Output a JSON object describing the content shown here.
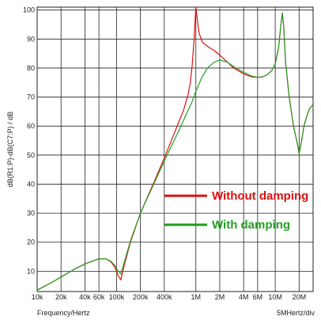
{
  "chart_data": {
    "type": "line",
    "title": "",
    "xlabel": "Frequency/Hertz",
    "ylabel": "dB(R1:P)-dB(C7:P) / dB",
    "x_scale": "log",
    "xlim": [
      10000,
      30000000
    ],
    "ylim": [
      3,
      101
    ],
    "x_ticks": [
      {
        "v": 10000,
        "label": "10k"
      },
      {
        "v": 20000,
        "label": "20k"
      },
      {
        "v": 40000,
        "label": "40k"
      },
      {
        "v": 60000,
        "label": "60k"
      },
      {
        "v": 100000,
        "label": "100k"
      },
      {
        "v": 200000,
        "label": "200k"
      },
      {
        "v": 400000,
        "label": "400k"
      },
      {
        "v": 1000000,
        "label": "1M"
      },
      {
        "v": 2000000,
        "label": "2M"
      },
      {
        "v": 4000000,
        "label": "4M"
      },
      {
        "v": 6000000,
        "label": "6M"
      },
      {
        "v": 10000000,
        "label": "10M"
      },
      {
        "v": 20000000,
        "label": "20M"
      }
    ],
    "y_ticks": [
      10,
      20,
      30,
      40,
      50,
      60,
      70,
      80,
      90,
      100
    ],
    "x_div_label": "5MHertz/div",
    "grid": true,
    "legend_position": "center-right",
    "series": [
      {
        "name": "Without damping",
        "color": "#dd1111",
        "points": [
          [
            10000,
            3.5
          ],
          [
            15000,
            6.0
          ],
          [
            20000,
            8.0
          ],
          [
            30000,
            10.8
          ],
          [
            40000,
            12.5
          ],
          [
            60000,
            14.3
          ],
          [
            75000,
            14.2
          ],
          [
            85000,
            13.2
          ],
          [
            95000,
            11.5
          ],
          [
            105000,
            8.5
          ],
          [
            113000,
            7.0
          ],
          [
            125000,
            12.0
          ],
          [
            150000,
            20.0
          ],
          [
            200000,
            30.0
          ],
          [
            300000,
            41.0
          ],
          [
            400000,
            49.0
          ],
          [
            500000,
            55.5
          ],
          [
            600000,
            61.0
          ],
          [
            700000,
            65.5
          ],
          [
            800000,
            71.0
          ],
          [
            850000,
            75.0
          ],
          [
            900000,
            81.0
          ],
          [
            950000,
            90.0
          ],
          [
            1000000,
            101.0
          ],
          [
            1050000,
            96.0
          ],
          [
            1100000,
            92.0
          ],
          [
            1200000,
            89.0
          ],
          [
            1400000,
            87.5
          ],
          [
            1700000,
            86.0
          ],
          [
            2000000,
            84.5
          ],
          [
            2500000,
            82.0
          ],
          [
            3000000,
            80.0
          ],
          [
            4000000,
            78.0
          ],
          [
            5000000,
            77.0
          ],
          [
            6000000,
            76.8
          ],
          [
            7000000,
            77.0
          ],
          [
            8000000,
            77.8
          ],
          [
            9000000,
            79.0
          ],
          [
            10000000,
            81.5
          ],
          [
            11000000,
            87.0
          ],
          [
            11800000,
            95.0
          ],
          [
            12300000,
            99.0
          ],
          [
            12800000,
            94.0
          ],
          [
            13500000,
            82.0
          ],
          [
            15000000,
            70.0
          ],
          [
            17000000,
            60.0
          ],
          [
            19000000,
            54.0
          ],
          [
            20000000,
            50.5
          ],
          [
            21500000,
            55.0
          ],
          [
            23000000,
            60.0
          ],
          [
            25000000,
            63.5
          ],
          [
            27000000,
            66.0
          ],
          [
            30000000,
            67.5
          ]
        ]
      },
      {
        "name": "With damping",
        "color": "#22a022",
        "points": [
          [
            10000,
            3.5
          ],
          [
            15000,
            6.0
          ],
          [
            20000,
            8.0
          ],
          [
            30000,
            10.8
          ],
          [
            40000,
            12.5
          ],
          [
            60000,
            14.3
          ],
          [
            75000,
            14.2
          ],
          [
            85000,
            13.4
          ],
          [
            95000,
            12.0
          ],
          [
            105000,
            10.0
          ],
          [
            113000,
            9.0
          ],
          [
            125000,
            13.0
          ],
          [
            150000,
            20.5
          ],
          [
            200000,
            30.0
          ],
          [
            300000,
            40.5
          ],
          [
            400000,
            48.0
          ],
          [
            500000,
            53.5
          ],
          [
            600000,
            58.0
          ],
          [
            700000,
            62.0
          ],
          [
            800000,
            65.5
          ],
          [
            900000,
            68.5
          ],
          [
            1000000,
            72.0
          ],
          [
            1200000,
            77.0
          ],
          [
            1400000,
            80.0
          ],
          [
            1700000,
            82.0
          ],
          [
            2000000,
            82.8
          ],
          [
            2500000,
            82.0
          ],
          [
            3000000,
            80.5
          ],
          [
            4000000,
            78.5
          ],
          [
            5000000,
            77.3
          ],
          [
            6000000,
            76.8
          ],
          [
            7000000,
            77.0
          ],
          [
            8000000,
            77.8
          ],
          [
            9000000,
            79.0
          ],
          [
            10000000,
            81.5
          ],
          [
            11000000,
            87.0
          ],
          [
            11800000,
            95.0
          ],
          [
            12300000,
            99.0
          ],
          [
            12800000,
            94.0
          ],
          [
            13500000,
            82.0
          ],
          [
            15000000,
            70.0
          ],
          [
            17000000,
            60.0
          ],
          [
            19000000,
            54.0
          ],
          [
            20000000,
            50.5
          ],
          [
            21500000,
            55.0
          ],
          [
            23000000,
            60.0
          ],
          [
            25000000,
            63.5
          ],
          [
            27000000,
            66.0
          ],
          [
            30000000,
            67.5
          ]
        ]
      }
    ]
  }
}
